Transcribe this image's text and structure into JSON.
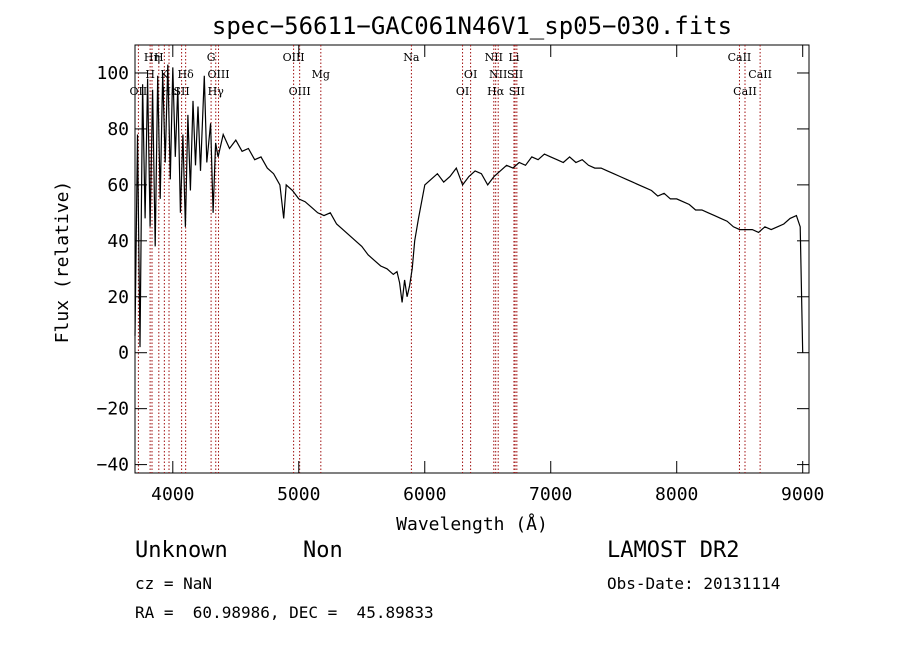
{
  "chart_data": {
    "type": "line",
    "title": "spec−56611−GAC061N46V1_sp05−030.fits",
    "xlabel": "Wavelength (Å)",
    "ylabel": "Flux (relative)",
    "xlim": [
      3700,
      9050
    ],
    "ylim": [
      -43,
      110
    ],
    "x_ticks": [
      4000,
      5000,
      6000,
      7000,
      8000,
      9000
    ],
    "y_ticks": [
      -40,
      -20,
      0,
      20,
      40,
      60,
      80,
      100
    ],
    "grid": false,
    "series": [
      {
        "color": "#000000",
        "points": [
          [
            3700,
            6
          ],
          [
            3720,
            78
          ],
          [
            3740,
            2
          ],
          [
            3760,
            96
          ],
          [
            3780,
            48
          ],
          [
            3800,
            98
          ],
          [
            3820,
            45
          ],
          [
            3840,
            94
          ],
          [
            3860,
            38
          ],
          [
            3880,
            99
          ],
          [
            3900,
            55
          ],
          [
            3920,
            100
          ],
          [
            3940,
            68
          ],
          [
            3960,
            103
          ],
          [
            3980,
            62
          ],
          [
            4000,
            102
          ],
          [
            4020,
            70
          ],
          [
            4040,
            95
          ],
          [
            4060,
            50
          ],
          [
            4080,
            78
          ],
          [
            4100,
            45
          ],
          [
            4120,
            85
          ],
          [
            4140,
            58
          ],
          [
            4160,
            90
          ],
          [
            4180,
            67
          ],
          [
            4200,
            88
          ],
          [
            4220,
            65
          ],
          [
            4250,
            99
          ],
          [
            4270,
            68
          ],
          [
            4300,
            82
          ],
          [
            4320,
            50
          ],
          [
            4340,
            75
          ],
          [
            4360,
            70
          ],
          [
            4400,
            78
          ],
          [
            4450,
            73
          ],
          [
            4500,
            76
          ],
          [
            4550,
            72
          ],
          [
            4600,
            73
          ],
          [
            4650,
            69
          ],
          [
            4700,
            70
          ],
          [
            4750,
            66
          ],
          [
            4800,
            64
          ],
          [
            4850,
            60
          ],
          [
            4880,
            48
          ],
          [
            4900,
            60
          ],
          [
            4950,
            58
          ],
          [
            5000,
            55
          ],
          [
            5050,
            54
          ],
          [
            5100,
            52
          ],
          [
            5150,
            50
          ],
          [
            5200,
            49
          ],
          [
            5250,
            50
          ],
          [
            5300,
            46
          ],
          [
            5350,
            44
          ],
          [
            5400,
            42
          ],
          [
            5450,
            40
          ],
          [
            5500,
            38
          ],
          [
            5550,
            35
          ],
          [
            5600,
            33
          ],
          [
            5650,
            31
          ],
          [
            5700,
            30
          ],
          [
            5750,
            28
          ],
          [
            5780,
            29
          ],
          [
            5800,
            25
          ],
          [
            5820,
            18
          ],
          [
            5840,
            26
          ],
          [
            5860,
            20
          ],
          [
            5880,
            24
          ],
          [
            5900,
            30
          ],
          [
            5920,
            40
          ],
          [
            5950,
            48
          ],
          [
            6000,
            60
          ],
          [
            6050,
            62
          ],
          [
            6100,
            64
          ],
          [
            6150,
            61
          ],
          [
            6200,
            63
          ],
          [
            6250,
            66
          ],
          [
            6300,
            60
          ],
          [
            6350,
            63
          ],
          [
            6400,
            65
          ],
          [
            6450,
            64
          ],
          [
            6500,
            60
          ],
          [
            6550,
            63
          ],
          [
            6600,
            65
          ],
          [
            6650,
            67
          ],
          [
            6700,
            66
          ],
          [
            6750,
            68
          ],
          [
            6800,
            67
          ],
          [
            6850,
            70
          ],
          [
            6900,
            69
          ],
          [
            6950,
            71
          ],
          [
            7000,
            70
          ],
          [
            7050,
            69
          ],
          [
            7100,
            68
          ],
          [
            7150,
            70
          ],
          [
            7200,
            68
          ],
          [
            7250,
            69
          ],
          [
            7300,
            67
          ],
          [
            7350,
            66
          ],
          [
            7400,
            66
          ],
          [
            7450,
            65
          ],
          [
            7500,
            64
          ],
          [
            7550,
            63
          ],
          [
            7600,
            62
          ],
          [
            7650,
            61
          ],
          [
            7700,
            60
          ],
          [
            7750,
            59
          ],
          [
            7800,
            58
          ],
          [
            7850,
            56
          ],
          [
            7900,
            57
          ],
          [
            7950,
            55
          ],
          [
            8000,
            55
          ],
          [
            8050,
            54
          ],
          [
            8100,
            53
          ],
          [
            8150,
            51
          ],
          [
            8200,
            51
          ],
          [
            8250,
            50
          ],
          [
            8300,
            49
          ],
          [
            8350,
            48
          ],
          [
            8400,
            47
          ],
          [
            8450,
            45
          ],
          [
            8500,
            44
          ],
          [
            8550,
            44
          ],
          [
            8600,
            44
          ],
          [
            8650,
            43
          ],
          [
            8700,
            45
          ],
          [
            8750,
            44
          ],
          [
            8800,
            45
          ],
          [
            8850,
            46
          ],
          [
            8900,
            48
          ],
          [
            8950,
            49
          ],
          [
            8980,
            45
          ],
          [
            9000,
            0
          ]
        ]
      }
    ],
    "lines": [
      {
        "label": "Hη",
        "x": 3835,
        "row": 1
      },
      {
        "label": "H",
        "x": 3889,
        "row": 1
      },
      {
        "label": "H",
        "x": 3820,
        "row": 2
      },
      {
        "label": "K",
        "x": 3933,
        "row": 2
      },
      {
        "label": "Hδ",
        "x": 4102,
        "row": 2
      },
      {
        "label": "OII",
        "x": 3727,
        "row": 3
      },
      {
        "label": "Hε",
        "x": 3970,
        "row": 3
      },
      {
        "label": "SII",
        "x": 4070,
        "row": 3
      },
      {
        "label": "G",
        "x": 4304,
        "row": 1
      },
      {
        "label": "OIII",
        "x": 4363,
        "row": 2
      },
      {
        "label": "Hγ",
        "x": 4341,
        "row": 3
      },
      {
        "label": "OIII",
        "x": 4959,
        "row": 1
      },
      {
        "label": "OIII",
        "x": 5007,
        "row": 3
      },
      {
        "label": "Mg",
        "x": 5175,
        "row": 2
      },
      {
        "label": "Na",
        "x": 5894,
        "row": 1
      },
      {
        "label": "OI",
        "x": 6364,
        "row": 2
      },
      {
        "label": "OI",
        "x": 6300,
        "row": 3
      },
      {
        "label": "NII",
        "x": 6548,
        "row": 1
      },
      {
        "label": "Li",
        "x": 6708,
        "row": 1
      },
      {
        "label": "NII",
        "x": 6583,
        "row": 2
      },
      {
        "label": "SII",
        "x": 6717,
        "row": 2
      },
      {
        "label": "Hα",
        "x": 6563,
        "row": 3
      },
      {
        "label": "SII",
        "x": 6731,
        "row": 3
      },
      {
        "label": "CaII",
        "x": 8498,
        "row": 1
      },
      {
        "label": "CaII",
        "x": 8662,
        "row": 2
      },
      {
        "label": "CaII",
        "x": 8542,
        "row": 3
      }
    ]
  },
  "info": {
    "object_class": "Unknown",
    "subclass": "Non",
    "cz": "cz = NaN",
    "coords": "RA =  60.98986, DEC =  45.89833",
    "survey": "LAMOST DR2",
    "obs_date": "Obs-Date: 20131114"
  }
}
